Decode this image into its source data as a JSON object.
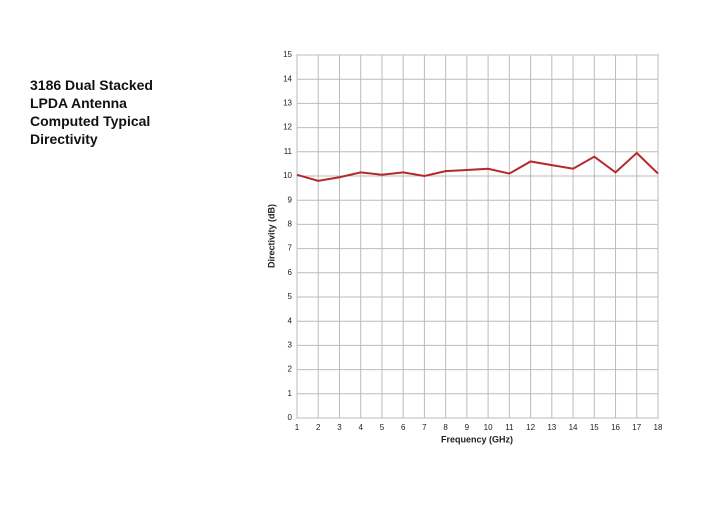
{
  "chart_data": {
    "type": "line",
    "title": [
      "3186 Dual Stacked",
      "LPDA Antenna",
      "Computed Typical",
      "Directivity"
    ],
    "xlabel": "Frequency (GHz)",
    "ylabel": "Directivity (dB)",
    "x": [
      1,
      2,
      3,
      4,
      5,
      6,
      7,
      8,
      9,
      10,
      11,
      12,
      13,
      14,
      15,
      16,
      17,
      18
    ],
    "series": [
      {
        "color": "#b5282c",
        "values": [
          10.05,
          9.8,
          9.95,
          10.15,
          10.05,
          10.15,
          10.0,
          10.2,
          10.25,
          10.3,
          10.1,
          10.6,
          10.45,
          10.3,
          10.8,
          10.15,
          10.95,
          10.1
        ]
      }
    ],
    "xlim": [
      1,
      18
    ],
    "xticks": [
      1,
      2,
      3,
      4,
      5,
      6,
      7,
      8,
      9,
      10,
      11,
      12,
      13,
      14,
      15,
      16,
      17,
      18
    ],
    "ylim": [
      0,
      15
    ],
    "yticks": [
      0,
      1,
      2,
      3,
      4,
      5,
      6,
      7,
      8,
      9,
      10,
      11,
      12,
      13,
      14,
      15
    ],
    "grid": true
  }
}
